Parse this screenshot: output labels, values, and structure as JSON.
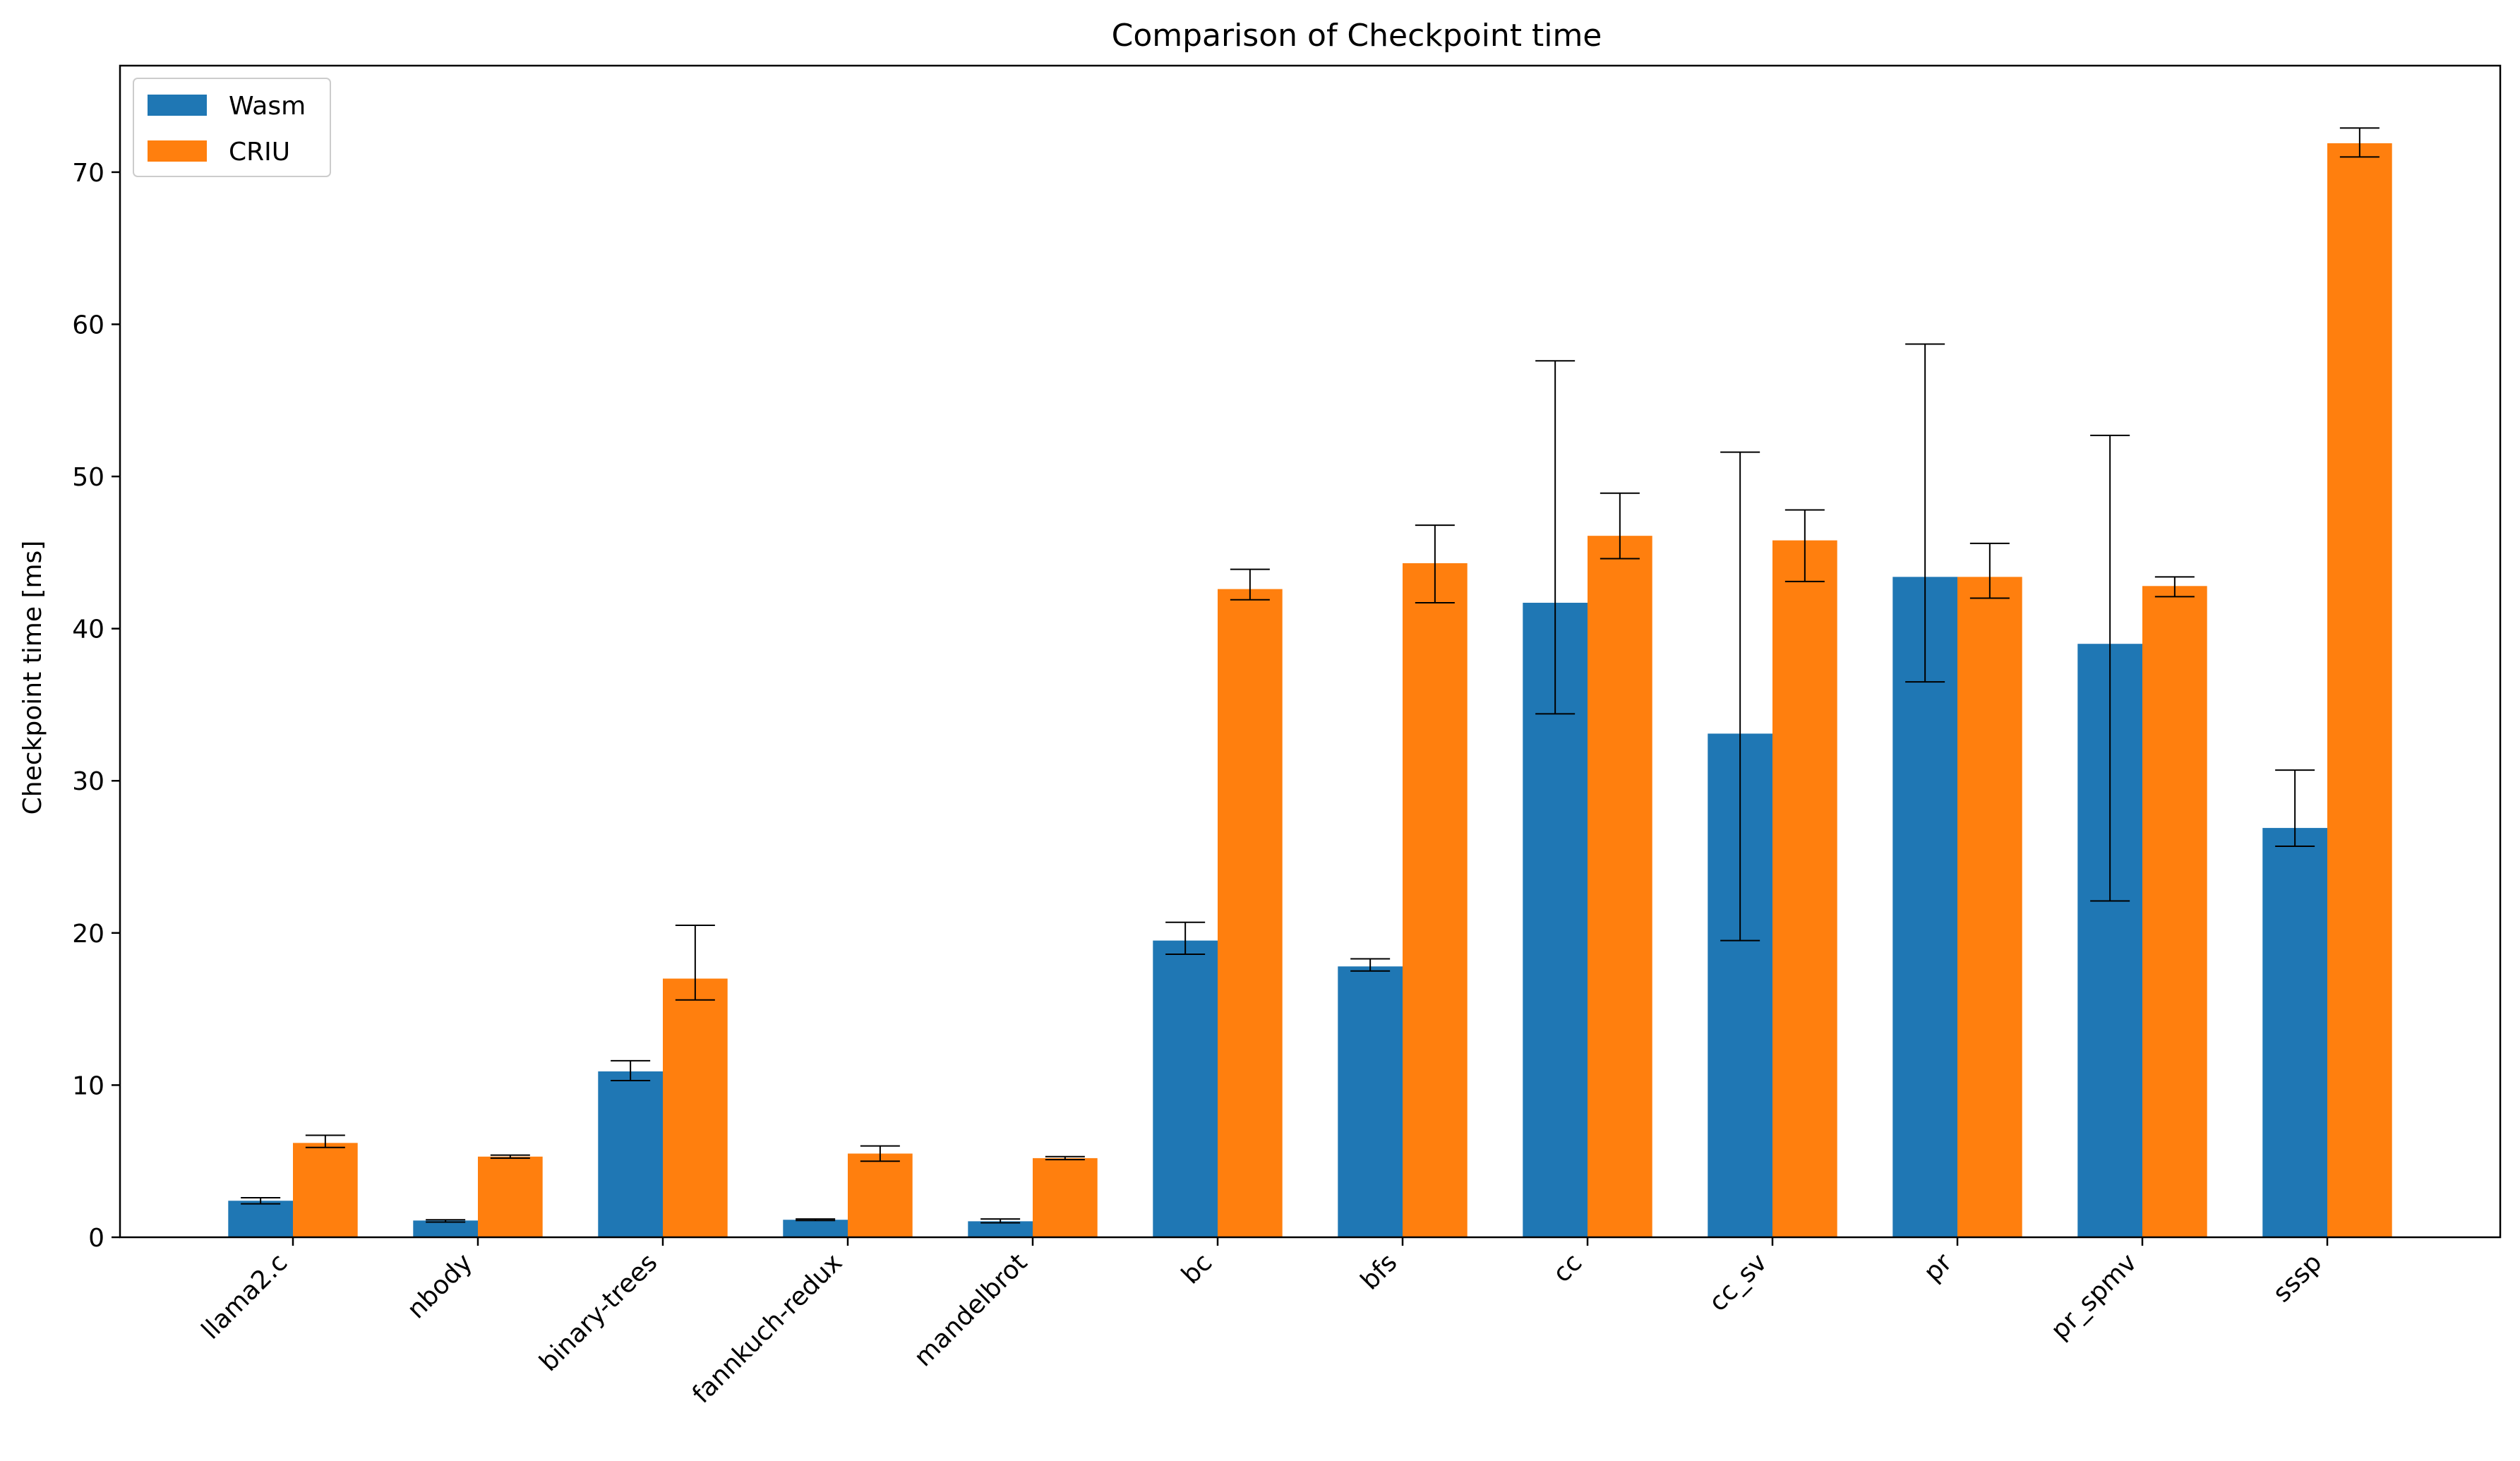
{
  "chart_data": {
    "type": "bar",
    "title": "Comparison of Checkpoint time",
    "xlabel": "",
    "ylabel": "Checkpoint time [ms]",
    "ylim": [
      0,
      77
    ],
    "yticks": [
      0,
      10,
      20,
      30,
      40,
      50,
      60,
      70
    ],
    "grid": false,
    "legend_position": "top-left",
    "categories": [
      "llama2.c",
      "nbody",
      "binary-trees",
      "fannkuch-redux",
      "mandelbrot",
      "bc",
      "bfs",
      "cc",
      "cc_sv",
      "pr",
      "pr_spmv",
      "sssp"
    ],
    "series": [
      {
        "name": "Wasm",
        "color": "#1f77b4",
        "values": [
          2.4,
          1.1,
          10.9,
          1.15,
          1.05,
          19.5,
          17.8,
          41.7,
          33.1,
          43.4,
          39.0,
          26.9
        ],
        "error_low": [
          2.2,
          1.0,
          10.3,
          1.1,
          0.95,
          18.6,
          17.5,
          34.4,
          19.5,
          36.5,
          22.1,
          25.7
        ],
        "error_high": [
          2.6,
          1.15,
          11.6,
          1.2,
          1.2,
          20.7,
          18.3,
          57.6,
          51.6,
          58.7,
          52.7,
          30.7
        ]
      },
      {
        "name": "CRIU",
        "color": "#ff7f0e",
        "values": [
          6.2,
          5.3,
          17.0,
          5.5,
          5.2,
          42.6,
          44.3,
          46.1,
          45.8,
          43.4,
          42.8,
          71.9
        ],
        "error_low": [
          5.9,
          5.2,
          15.6,
          5.0,
          5.1,
          41.9,
          41.7,
          44.6,
          43.1,
          42.0,
          42.1,
          71.0
        ],
        "error_high": [
          6.7,
          5.4,
          20.5,
          6.0,
          5.3,
          43.9,
          46.8,
          48.9,
          47.8,
          45.6,
          43.4,
          72.9
        ]
      }
    ]
  }
}
